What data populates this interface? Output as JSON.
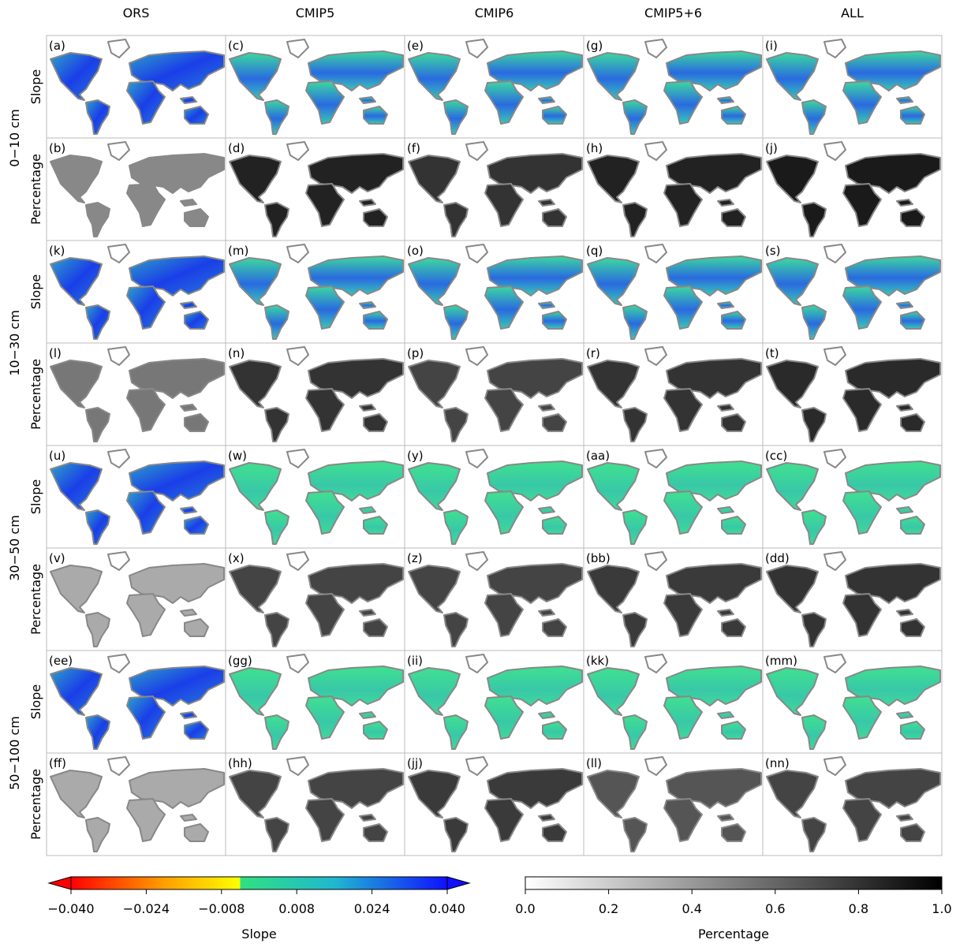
{
  "columns": [
    "ORS",
    "CMIP5",
    "CMIP6",
    "CMIP5+6",
    "ALL"
  ],
  "depths": [
    "0−10 cm",
    "10−30 cm",
    "30−50 cm",
    "50−100 cm"
  ],
  "rows": [
    {
      "label": "Slope",
      "panels": [
        "(a)",
        "(c)",
        "(e)",
        "(g)",
        "(i)"
      ]
    },
    {
      "label": "Percentage",
      "panels": [
        "(b)",
        "(d)",
        "(f)",
        "(h)",
        "(j)"
      ]
    },
    {
      "label": "Slope",
      "panels": [
        "(k)",
        "(m)",
        "(o)",
        "(q)",
        "(s)"
      ]
    },
    {
      "label": "Percentage",
      "panels": [
        "(l)",
        "(n)",
        "(p)",
        "(r)",
        "(t)"
      ]
    },
    {
      "label": "Slope",
      "panels": [
        "(u)",
        "(w)",
        "(y)",
        "(aa)",
        "(cc)"
      ]
    },
    {
      "label": "Percentage",
      "panels": [
        "(v)",
        "(x)",
        "(z)",
        "(bb)",
        "(dd)"
      ]
    },
    {
      "label": "Slope",
      "panels": [
        "(ee)",
        "(gg)",
        "(ii)",
        "(kk)",
        "(mm)"
      ]
    },
    {
      "label": "Percentage",
      "panels": [
        "(ff)",
        "(hh)",
        "(jj)",
        "(ll)",
        "(nn)"
      ]
    }
  ],
  "colorbars": [
    {
      "title": "Slope",
      "lim": [
        -0.04,
        0.04
      ],
      "ticks": [
        {
          "value": -0.04,
          "label": "−0.040"
        },
        {
          "value": -0.024,
          "label": "−0.024"
        },
        {
          "value": -0.008,
          "label": "−0.008"
        },
        {
          "value": 0.008,
          "label": "0.008"
        },
        {
          "value": 0.024,
          "label": "0.024"
        },
        {
          "value": 0.04,
          "label": "0.040"
        }
      ]
    },
    {
      "title": "Percentage",
      "lim": [
        0,
        1
      ],
      "ticks": [
        {
          "value": 0,
          "label": "0.0"
        },
        0.2,
        0.4,
        0.6,
        0.8,
        {
          "value": 1,
          "label": "1.0"
        }
      ]
    }
  ]
}
